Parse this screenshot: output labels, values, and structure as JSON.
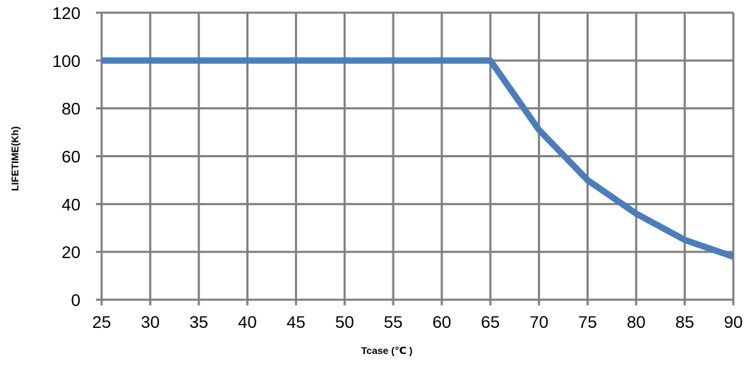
{
  "chart_data": {
    "type": "line",
    "title": "",
    "xlabel": "Tcase (℃ )",
    "ylabel": "LIFETIME(Kh)",
    "x_ticks": [
      25,
      30,
      35,
      40,
      45,
      50,
      55,
      60,
      65,
      70,
      75,
      80,
      85,
      90
    ],
    "y_ticks": [
      0,
      20,
      40,
      60,
      80,
      100,
      120
    ],
    "xlim": [
      25,
      90
    ],
    "ylim": [
      0,
      120
    ],
    "grid": true,
    "legend": "none",
    "series": [
      {
        "color": "#4a7dbb",
        "x": [
          25,
          30,
          35,
          40,
          45,
          50,
          55,
          60,
          65,
          70,
          75,
          80,
          85,
          90
        ],
        "y": [
          100,
          100,
          100,
          100,
          100,
          100,
          100,
          100,
          100,
          71,
          50,
          36,
          25,
          18
        ]
      }
    ]
  }
}
